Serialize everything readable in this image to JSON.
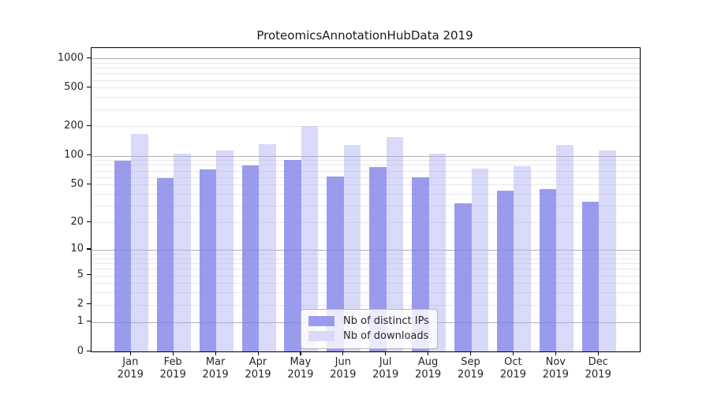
{
  "chart_data": {
    "type": "bar",
    "title": "ProteomicsAnnotationHubData 2019",
    "categories": [
      "Jan",
      "Feb",
      "Mar",
      "Apr",
      "May",
      "Jun",
      "Jul",
      "Aug",
      "Sep",
      "Oct",
      "Nov",
      "Dec"
    ],
    "x_year_label": "2019",
    "series": [
      {
        "name": "Nb of distinct IPs",
        "color": "#9b9bec",
        "fill": "rgba(130,130,232,0.8)",
        "values": [
          88,
          58,
          72,
          79,
          90,
          61,
          76,
          60,
          32,
          43,
          45,
          33
        ]
      },
      {
        "name": "Nb of downloads",
        "color": "#dadaf8",
        "fill": "rgba(170,170,242,0.45)",
        "values": [
          167,
          105,
          114,
          132,
          203,
          128,
          154,
          104,
          74,
          77,
          130,
          113
        ]
      }
    ],
    "y_ticks": [
      0,
      1,
      2,
      5,
      10,
      20,
      50,
      100,
      200,
      500,
      1000
    ],
    "y_scale": "log10(1+y)",
    "ylim": [
      0,
      1270
    ],
    "grid": {
      "orientation": "horizontal",
      "major_at": [
        1,
        10,
        100,
        1000
      ],
      "major_color": "#b0b0b0",
      "minor_color": "#e8e8e8"
    },
    "legend": {
      "position": "inside-bottom-center"
    },
    "spine_color": "#000000",
    "text_color": "#262626",
    "background": "#ffffff"
  }
}
